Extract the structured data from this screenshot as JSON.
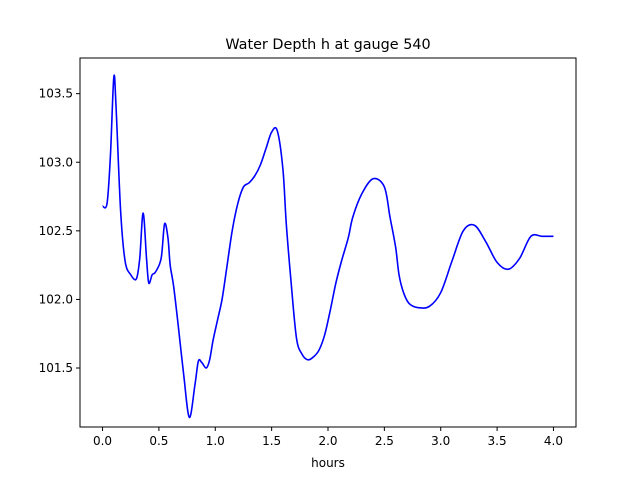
{
  "chart_data": {
    "type": "line",
    "title": "Water Depth h at gauge 540",
    "xlabel": "hours",
    "ylabel": "",
    "xlim": [
      -0.2,
      4.2
    ],
    "ylim": [
      101.07,
      103.76
    ],
    "xticks": [
      0.0,
      0.5,
      1.0,
      1.5,
      2.0,
      2.5,
      3.0,
      3.5,
      4.0
    ],
    "xtick_labels": [
      "0.0",
      "0.5",
      "1.0",
      "1.5",
      "2.0",
      "2.5",
      "3.0",
      "3.5",
      "4.0"
    ],
    "yticks": [
      101.5,
      102.0,
      102.5,
      103.0,
      103.5
    ],
    "ytick_labels": [
      "101.5",
      "102.0",
      "102.5",
      "103.0",
      "103.5"
    ],
    "grid": false,
    "series": [
      {
        "color": "#0000ff",
        "x": [
          0.0,
          0.04,
          0.07,
          0.1,
          0.12,
          0.16,
          0.2,
          0.25,
          0.3,
          0.33,
          0.36,
          0.39,
          0.41,
          0.44,
          0.47,
          0.52,
          0.55,
          0.58,
          0.6,
          0.63,
          0.67,
          0.72,
          0.77,
          0.82,
          0.85,
          0.88,
          0.92,
          0.95,
          0.98,
          1.02,
          1.06,
          1.1,
          1.15,
          1.2,
          1.25,
          1.3,
          1.35,
          1.4,
          1.45,
          1.5,
          1.55,
          1.6,
          1.63,
          1.67,
          1.72,
          1.77,
          1.82,
          1.87,
          1.92,
          1.97,
          2.02,
          2.07,
          2.12,
          2.18,
          2.22,
          2.3,
          2.4,
          2.5,
          2.55,
          2.6,
          2.63,
          2.67,
          2.72,
          2.8,
          2.9,
          3.0,
          3.1,
          3.2,
          3.3,
          3.4,
          3.5,
          3.6,
          3.7,
          3.8,
          3.9,
          4.0
        ],
        "y": [
          102.68,
          102.7,
          103.05,
          103.62,
          103.4,
          102.65,
          102.28,
          102.18,
          102.15,
          102.3,
          102.63,
          102.3,
          102.12,
          102.18,
          102.2,
          102.3,
          102.55,
          102.45,
          102.25,
          102.1,
          101.82,
          101.45,
          101.14,
          101.38,
          101.55,
          101.54,
          101.5,
          101.56,
          101.7,
          101.85,
          102.0,
          102.22,
          102.5,
          102.7,
          102.82,
          102.85,
          102.9,
          102.98,
          103.1,
          103.22,
          103.23,
          102.95,
          102.55,
          102.15,
          101.72,
          101.6,
          101.56,
          101.58,
          101.63,
          101.74,
          101.92,
          102.12,
          102.28,
          102.45,
          102.6,
          102.77,
          102.88,
          102.82,
          102.6,
          102.38,
          102.18,
          102.05,
          101.97,
          101.94,
          101.95,
          102.05,
          102.28,
          102.5,
          102.54,
          102.42,
          102.27,
          102.22,
          102.3,
          102.46,
          102.46,
          102.46
        ]
      }
    ]
  }
}
